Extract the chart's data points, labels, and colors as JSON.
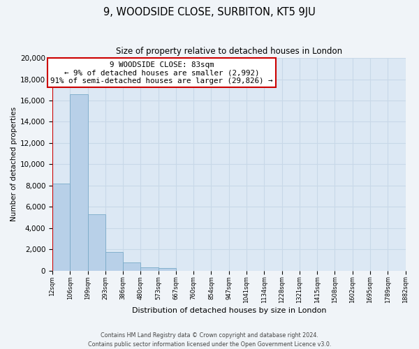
{
  "title": "9, WOODSIDE CLOSE, SURBITON, KT5 9JU",
  "subtitle": "Size of property relative to detached houses in London",
  "xlabel": "Distribution of detached houses by size in London",
  "ylabel": "Number of detached properties",
  "bar_values": [
    8200,
    16600,
    5300,
    1750,
    750,
    280,
    230,
    0,
    0,
    0,
    0,
    0,
    0,
    0,
    0,
    0,
    0,
    0,
    0,
    0
  ],
  "bar_labels": [
    "12sqm",
    "106sqm",
    "199sqm",
    "293sqm",
    "386sqm",
    "480sqm",
    "573sqm",
    "667sqm",
    "760sqm",
    "854sqm",
    "947sqm",
    "1041sqm",
    "1134sqm",
    "1228sqm",
    "1321sqm",
    "1415sqm",
    "1508sqm",
    "1602sqm",
    "1695sqm",
    "1789sqm",
    "1882sqm"
  ],
  "bar_color": "#b8d0e8",
  "bar_edge_color": "#7aaac8",
  "marker_color": "#cc0000",
  "annotation_line1": "9 WOODSIDE CLOSE: 83sqm",
  "annotation_line2": "← 9% of detached houses are smaller (2,992)",
  "annotation_line3": "91% of semi-detached houses are larger (29,826) →",
  "annotation_box_color": "#ffffff",
  "annotation_box_edge": "#cc0000",
  "ylim": [
    0,
    20000
  ],
  "yticks": [
    0,
    2000,
    4000,
    6000,
    8000,
    10000,
    12000,
    14000,
    16000,
    18000,
    20000
  ],
  "grid_color": "#c8d8e8",
  "bg_color": "#dce8f4",
  "fig_bg_color": "#f0f4f8",
  "footer_line1": "Contains HM Land Registry data © Crown copyright and database right 2024.",
  "footer_line2": "Contains public sector information licensed under the Open Government Licence v3.0."
}
